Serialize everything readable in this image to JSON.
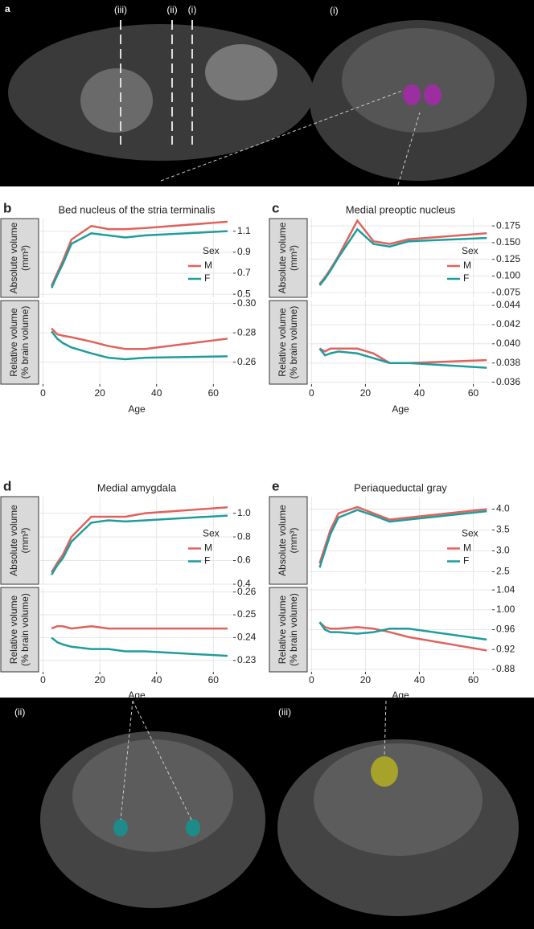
{
  "figure": {
    "panel_a": "a",
    "top_slice_labels": [
      "(iii)",
      "(ii)",
      "(i)"
    ],
    "top_right_label": "(i)",
    "bottom_left_label": "(ii)",
    "bottom_right_label": "(iii)"
  },
  "chart_data": [
    {
      "type": "line",
      "panel": "b",
      "title": "Bed nucleus of the stria terminalis",
      "x": [
        3,
        5,
        7,
        10,
        17,
        23,
        29,
        36,
        65
      ],
      "xlim": [
        -1,
        67
      ],
      "xticks": [
        0,
        20,
        40,
        60
      ],
      "xlabel": "Age",
      "legend": {
        "title": "Sex",
        "position": "right",
        "entries": [
          {
            "name": "M",
            "color": "#e0625c"
          },
          {
            "name": "F",
            "color": "#1f9c9c"
          }
        ]
      },
      "subplots": [
        {
          "ylabel": [
            "Absolute volume",
            "(mm³)"
          ],
          "ylim": [
            0.47,
            1.22
          ],
          "yticks": [
            0.5,
            0.7,
            0.9,
            1.1
          ],
          "series": [
            {
              "values": [
                0.58,
                0.7,
                0.82,
                1.02,
                1.15,
                1.12,
                1.12,
                1.13,
                1.19
              ]
            },
            {
              "values": [
                0.56,
                0.68,
                0.79,
                0.98,
                1.08,
                1.06,
                1.04,
                1.06,
                1.1
              ]
            }
          ]
        },
        {
          "ylabel": [
            "Relative volume",
            "(% brain volume)"
          ],
          "ylim": [
            0.245,
            0.302
          ],
          "yticks": [
            0.26,
            0.28,
            {
              "value": 0.3,
              "label": "0.30"
            }
          ],
          "series": [
            {
              "values": [
                0.283,
                0.279,
                0.278,
                0.277,
                0.274,
                0.271,
                0.269,
                0.269,
                0.276
              ]
            },
            {
              "values": [
                0.281,
                0.276,
                0.273,
                0.27,
                0.266,
                0.263,
                0.262,
                0.263,
                0.264
              ]
            }
          ]
        }
      ]
    },
    {
      "type": "line",
      "panel": "c",
      "title": "Medial preoptic nucleus",
      "x": [
        3,
        5,
        7,
        10,
        17,
        23,
        29,
        36,
        65
      ],
      "xlim": [
        -1,
        67
      ],
      "xticks": [
        0,
        20,
        40,
        60
      ],
      "xlabel": "Age",
      "legend": {
        "title": "Sex",
        "position": "right",
        "entries": [
          {
            "name": "M",
            "color": "#e0625c"
          },
          {
            "name": "F",
            "color": "#1f9c9c"
          }
        ]
      },
      "subplots": [
        {
          "ylabel": [
            "Absolute volume",
            "(mm³)"
          ],
          "ylim": [
            0.068,
            0.186
          ],
          "yticks": [
            0.075,
            {
              "value": 0.1,
              "label": "0.100"
            },
            0.125,
            {
              "value": 0.15,
              "label": "0.150"
            },
            0.175
          ],
          "series": [
            {
              "values": [
                0.088,
                0.098,
                0.11,
                0.13,
                0.183,
                0.152,
                0.148,
                0.155,
                0.164
              ]
            },
            {
              "values": [
                0.086,
                0.096,
                0.108,
                0.128,
                0.17,
                0.148,
                0.144,
                0.152,
                0.157
              ]
            }
          ]
        },
        {
          "ylabel": [
            "Relative volume",
            "(% brain volume)"
          ],
          "ylim": [
            0.0358,
            0.0445
          ],
          "yticks": [
            0.036,
            0.038,
            {
              "value": 0.04,
              "label": "0.040"
            },
            0.042,
            0.044
          ],
          "series": [
            {
              "values": [
                0.0395,
                0.0392,
                0.0395,
                0.0395,
                0.0395,
                0.039,
                0.038,
                0.038,
                0.0383
              ]
            },
            {
              "values": [
                0.0395,
                0.0388,
                0.039,
                0.0392,
                0.039,
                0.0385,
                0.038,
                0.038,
                0.0375
              ]
            }
          ]
        }
      ]
    },
    {
      "type": "line",
      "panel": "d",
      "title": "Medial amygdala",
      "x": [
        3,
        5,
        7,
        10,
        17,
        23,
        29,
        36,
        65
      ],
      "xlim": [
        -1,
        67
      ],
      "xticks": [
        0,
        20,
        40,
        60
      ],
      "xlabel": "Age",
      "legend": {
        "title": "Sex",
        "position": "right",
        "entries": [
          {
            "name": "M",
            "color": "#e0625c"
          },
          {
            "name": "F",
            "color": "#1f9c9c"
          }
        ]
      },
      "subplots": [
        {
          "ylabel": [
            "Absolute volume",
            "(mm³)"
          ],
          "ylim": [
            0.4,
            1.14
          ],
          "yticks": [
            0.4,
            0.6,
            0.8,
            {
              "value": 1.0,
              "label": "1.0"
            }
          ],
          "series": [
            {
              "values": [
                0.5,
                0.58,
                0.65,
                0.8,
                0.97,
                0.97,
                0.97,
                1.0,
                1.05
              ]
            },
            {
              "values": [
                0.48,
                0.56,
                0.62,
                0.76,
                0.92,
                0.94,
                0.93,
                0.94,
                0.98
              ]
            }
          ]
        },
        {
          "ylabel": [
            "Relative volume",
            "(% brain volume)"
          ],
          "ylim": [
            0.225,
            0.262
          ],
          "yticks": [
            0.23,
            0.24,
            0.25,
            0.26
          ],
          "series": [
            {
              "values": [
                0.244,
                0.245,
                0.245,
                0.244,
                0.245,
                0.244,
                0.244,
                0.244,
                0.244
              ]
            },
            {
              "values": [
                0.24,
                0.238,
                0.237,
                0.236,
                0.235,
                0.235,
                0.234,
                0.234,
                0.232
              ]
            }
          ]
        }
      ]
    },
    {
      "type": "line",
      "panel": "e",
      "title": "Periaqueductal gray",
      "x": [
        3,
        5,
        7,
        10,
        17,
        23,
        29,
        36,
        65
      ],
      "xlim": [
        -1,
        67
      ],
      "xticks": [
        0,
        20,
        40,
        60
      ],
      "xlabel": "Age",
      "legend": {
        "title": "Sex",
        "position": "right",
        "entries": [
          {
            "name": "M",
            "color": "#e0625c"
          },
          {
            "name": "F",
            "color": "#1f9c9c"
          }
        ]
      },
      "subplots": [
        {
          "ylabel": [
            "Absolute volume",
            "(mm³)"
          ],
          "ylim": [
            2.2,
            4.3
          ],
          "yticks": [
            2.5,
            {
              "value": 3.0,
              "label": "3.0"
            },
            3.5,
            {
              "value": 4.0,
              "label": "4.0"
            }
          ],
          "series": [
            {
              "values": [
                2.7,
                3.1,
                3.5,
                3.9,
                4.05,
                3.9,
                3.75,
                3.8,
                4.0
              ]
            },
            {
              "values": [
                2.6,
                3.0,
                3.4,
                3.8,
                3.98,
                3.85,
                3.7,
                3.75,
                3.95
              ]
            }
          ]
        },
        {
          "ylabel": [
            "Relative volume",
            "(% brain volume)"
          ],
          "ylim": [
            0.875,
            1.045
          ],
          "yticks": [
            0.88,
            0.92,
            0.96,
            {
              "value": 1.0,
              "label": "1.00"
            },
            1.04
          ],
          "series": [
            {
              "values": [
                0.975,
                0.965,
                0.962,
                0.962,
                0.965,
                0.962,
                0.955,
                0.945,
                0.918
              ]
            },
            {
              "values": [
                0.975,
                0.96,
                0.955,
                0.955,
                0.952,
                0.955,
                0.962,
                0.962,
                0.94
              ]
            }
          ]
        }
      ]
    }
  ]
}
